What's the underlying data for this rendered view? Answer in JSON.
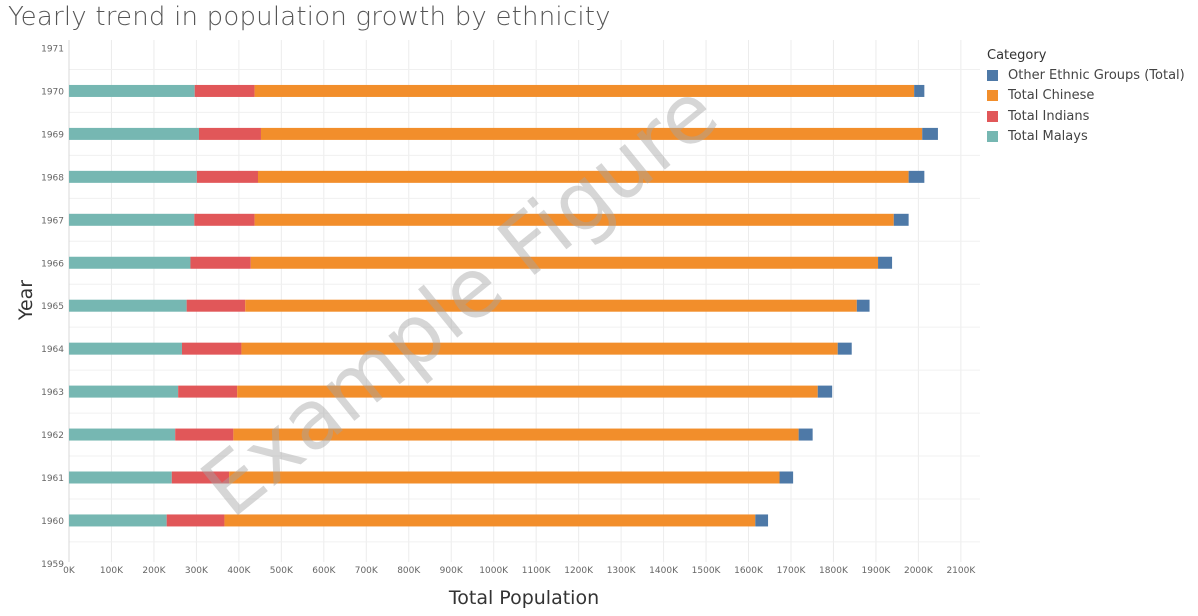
{
  "chart_data": {
    "type": "bar",
    "orientation": "horizontal",
    "stacked": true,
    "title": "Yearly trend in population growth by ethnicity",
    "xlabel": "Total Population",
    "ylabel": "Year",
    "xlim": [
      0,
      2100000
    ],
    "x_ticks": [
      "0K",
      "100K",
      "200K",
      "300K",
      "400K",
      "500K",
      "600K",
      "700K",
      "800K",
      "900K",
      "1000K",
      "1100K",
      "1200K",
      "1300K",
      "1400K",
      "1500K",
      "1600K",
      "1700K",
      "1800K",
      "1900K",
      "2000K",
      "2100K"
    ],
    "y_ticks": [
      "1971",
      "1970",
      "1969",
      "1968",
      "1967",
      "1966",
      "1965",
      "1964",
      "1963",
      "1962",
      "1961",
      "1960",
      "1959"
    ],
    "categories": [
      "1970",
      "1969",
      "1968",
      "1967",
      "1966",
      "1965",
      "1964",
      "1963",
      "1962",
      "1961",
      "1960"
    ],
    "series": [
      {
        "name": "Total Malays",
        "color": "#76b7b2",
        "values": [
          296000,
          306000,
          301000,
          295000,
          286000,
          277000,
          266000,
          257000,
          250000,
          242000,
          230000
        ]
      },
      {
        "name": "Total Indians",
        "color": "#e15759",
        "values": [
          141000,
          146000,
          144000,
          142000,
          142000,
          138000,
          140000,
          139000,
          137000,
          135000,
          136000
        ]
      },
      {
        "name": "Total Chinese",
        "color": "#f28e2b",
        "values": [
          1553000,
          1557000,
          1532000,
          1505000,
          1477000,
          1440000,
          1404000,
          1367000,
          1331000,
          1296000,
          1250000
        ]
      },
      {
        "name": "Other Ethnic Groups (Total)",
        "color": "#4e79a7",
        "values": [
          24000,
          37000,
          37000,
          35000,
          33000,
          30000,
          33000,
          34000,
          33000,
          32000,
          30000
        ]
      }
    ],
    "legend": {
      "title": "Category",
      "position": "right",
      "items": [
        {
          "label": "Other Ethnic Groups (Total)",
          "color": "#4e79a7"
        },
        {
          "label": "Total Chinese",
          "color": "#f28e2b"
        },
        {
          "label": "Total Indians",
          "color": "#e15759"
        },
        {
          "label": "Total Malays",
          "color": "#76b7b2"
        }
      ]
    },
    "grid": true,
    "watermark": "Example Figure"
  }
}
